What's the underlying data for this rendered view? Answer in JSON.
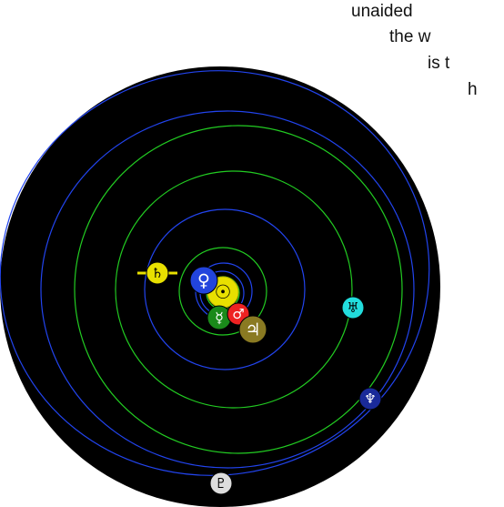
{
  "caption": {
    "lines": [
      "unaided",
      "the w",
      "is t",
      "h"
    ]
  },
  "orrery": {
    "colors": {
      "background": "#000000",
      "orbit_green": "#22cc22",
      "orbit_blue": "#2244ee"
    },
    "bodies": [
      {
        "id": "sun",
        "icon": "sun-icon",
        "symbol": "☉",
        "color": "#e8e000"
      },
      {
        "id": "mercury",
        "icon": "mercury-icon",
        "symbol": "☿",
        "color": "#1a8a1a"
      },
      {
        "id": "venus",
        "icon": "venus-icon",
        "symbol": "♀",
        "color": "#2244dd"
      },
      {
        "id": "mars",
        "icon": "mars-icon",
        "symbol": "♂",
        "color": "#ee2222"
      },
      {
        "id": "jupiter",
        "icon": "jupiter-icon",
        "symbol": "♃",
        "color": "#8a7a22"
      },
      {
        "id": "saturn",
        "icon": "saturn-icon",
        "symbol": "♄",
        "color": "#e8e000"
      },
      {
        "id": "uranus",
        "icon": "uranus-icon",
        "symbol": "♅",
        "color": "#22dddd"
      },
      {
        "id": "neptune",
        "icon": "neptune-icon",
        "symbol": "♆",
        "color": "#1a2a99"
      },
      {
        "id": "pluto",
        "icon": "pluto-icon",
        "symbol": "♇",
        "color": "#dddddd"
      }
    ]
  }
}
